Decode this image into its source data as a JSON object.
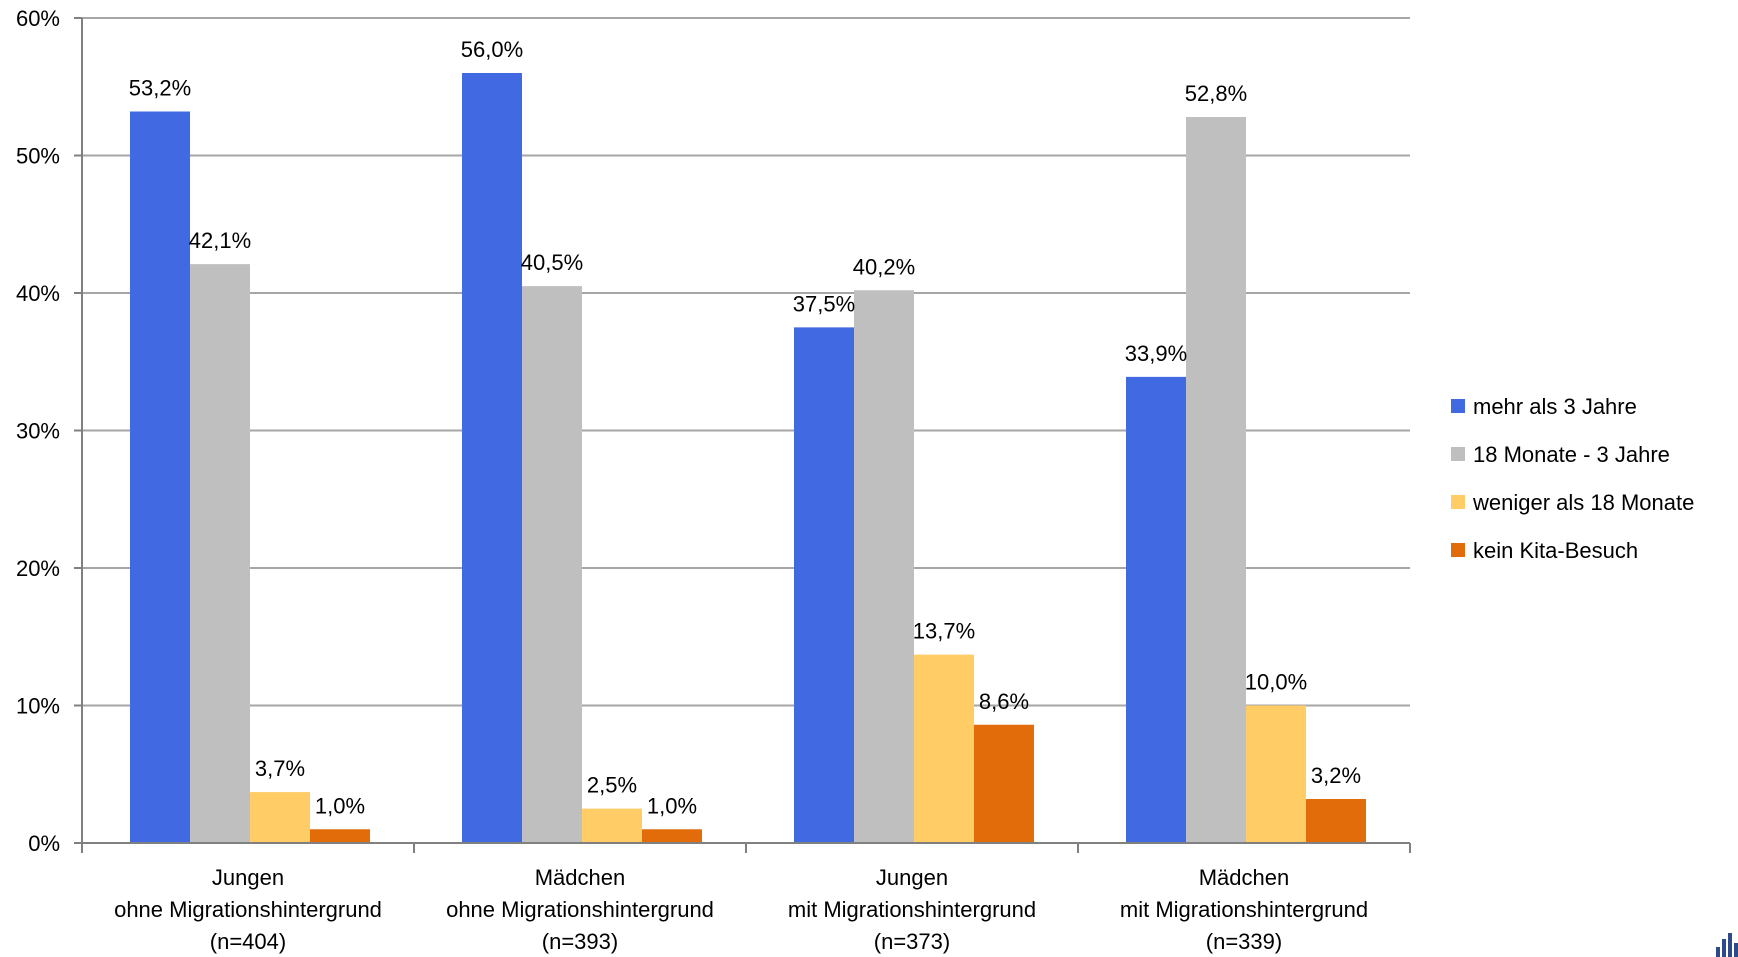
{
  "chart_data": {
    "type": "bar",
    "categories": [
      [
        "Jungen",
        "ohne Migrationshintergrund",
        "(n=404)"
      ],
      [
        "Mädchen",
        "ohne Migrationshintergrund",
        "(n=393)"
      ],
      [
        "Jungen",
        "mit Migrationshintergrund",
        "(n=373)"
      ],
      [
        "Mädchen",
        "mit Migrationshintergrund",
        "(n=339)"
      ]
    ],
    "series": [
      {
        "name": "mehr als 3 Jahre",
        "color": "#4169E1",
        "values": [
          53.2,
          56.0,
          37.5,
          33.9
        ],
        "labels": [
          "53,2%",
          "56,0%",
          "37,5%",
          "33,9%"
        ]
      },
      {
        "name": "18 Monate - 3 Jahre",
        "color": "#BFBFBF",
        "values": [
          42.1,
          40.5,
          40.2,
          52.8
        ],
        "labels": [
          "42,1%",
          "40,5%",
          "40,2%",
          "52,8%"
        ]
      },
      {
        "name": "weniger als 18 Monate",
        "color": "#FFCC66",
        "values": [
          3.7,
          2.5,
          13.7,
          10.0
        ],
        "labels": [
          "3,7%",
          "2,5%",
          "13,7%",
          "10,0%"
        ]
      },
      {
        "name": "kein Kita-Besuch",
        "color": "#E36C0A",
        "values": [
          1.0,
          1.0,
          8.6,
          3.2
        ],
        "labels": [
          "1,0%",
          "1,0%",
          "8,6%",
          "3,2%"
        ]
      }
    ],
    "ylim": [
      0,
      60
    ],
    "yticks": [
      0,
      10,
      20,
      30,
      40,
      50,
      60
    ],
    "ytick_labels": [
      "0%",
      "10%",
      "20%",
      "30%",
      "40%",
      "50%",
      "60%"
    ],
    "grid": true,
    "legend_position": "right"
  },
  "colors": {
    "gridline": "#A6A6A6",
    "axis": "#808080"
  }
}
